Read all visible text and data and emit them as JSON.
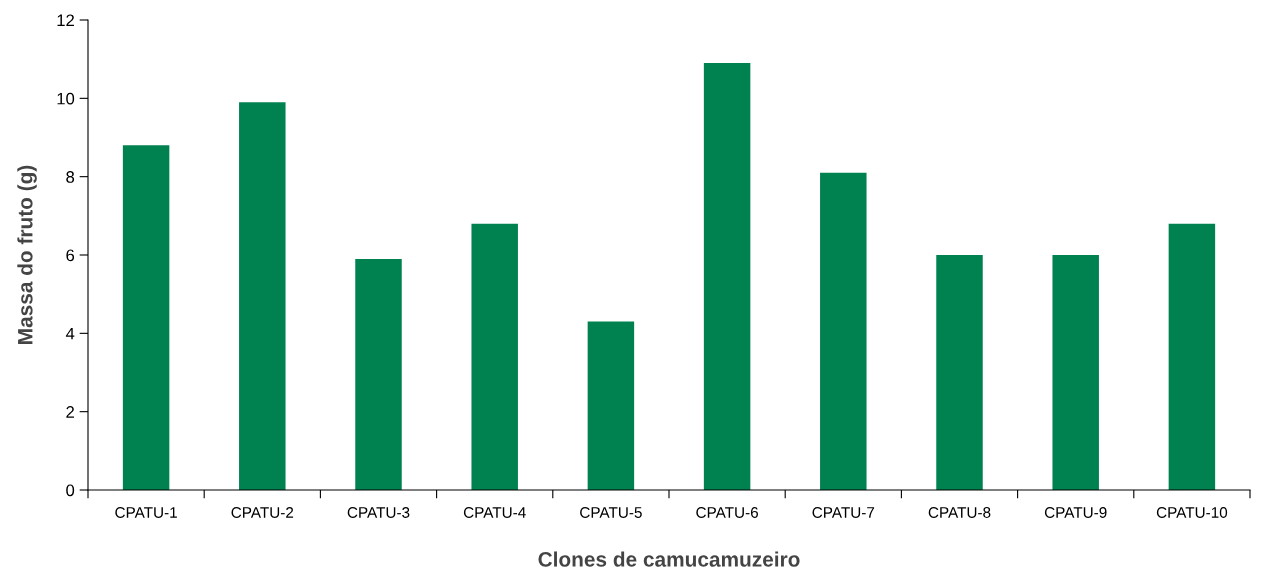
{
  "chart_data": {
    "type": "bar",
    "xlabel": "Clones de camucamuzeiro",
    "ylabel": "Massa do fruto (g)",
    "categories": [
      "CPATU-1",
      "CPATU-2",
      "CPATU-3",
      "CPATU-4",
      "CPATU-5",
      "CPATU-6",
      "CPATU-7",
      "CPATU-8",
      "CPATU-9",
      "CPATU-10"
    ],
    "values": [
      8.8,
      9.9,
      5.9,
      6.8,
      4.3,
      10.9,
      8.1,
      6.0,
      6.0,
      6.8
    ],
    "color": "#008250",
    "ylim": [
      0,
      12
    ],
    "yticks": [
      0,
      2,
      4,
      6,
      8,
      10,
      12
    ],
    "grid": false,
    "legend": false
  }
}
